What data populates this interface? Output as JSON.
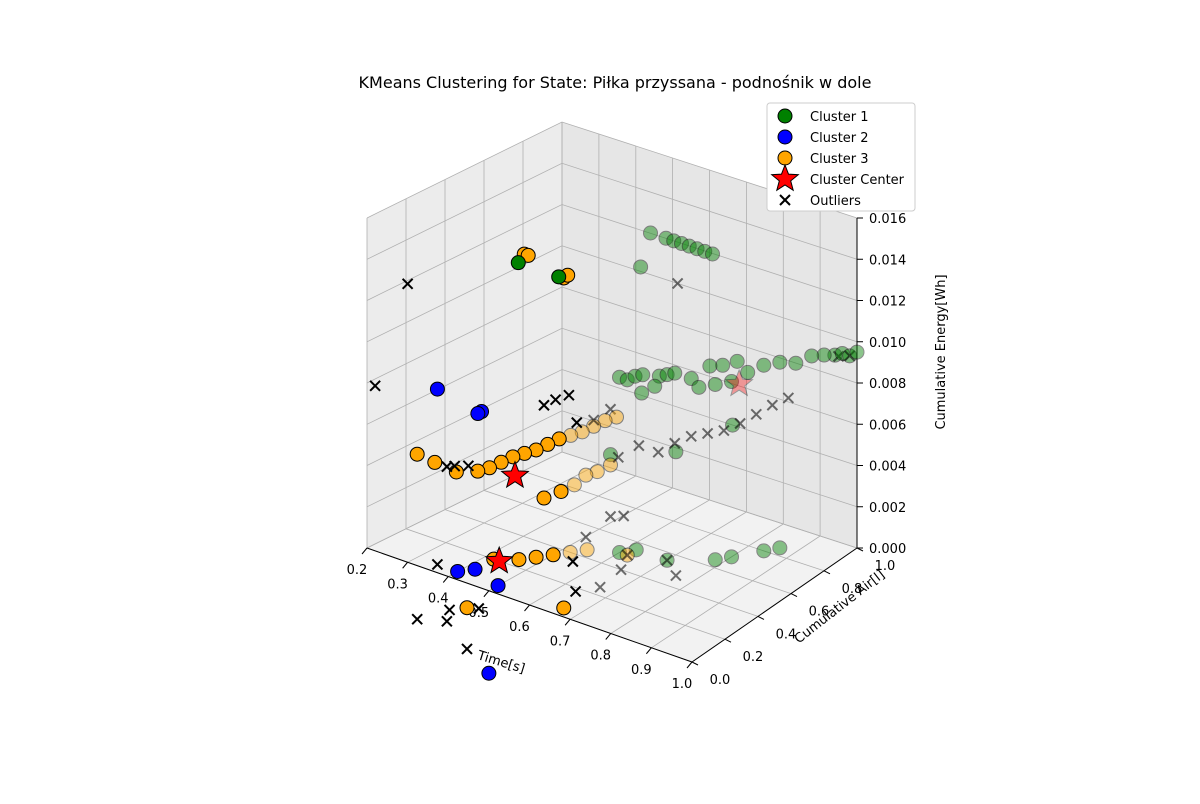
{
  "chart_data": {
    "type": "scatter3d",
    "title": "KMeans Clustering for State: Piłka przyssana - podnośnik w dole",
    "xlabel": "Time[s]",
    "ylabel": "Cumulative Air[l]",
    "zlabel": "Cumulative Energy[Wh]",
    "xlim": [
      0.2,
      1.0
    ],
    "ylim": [
      0.0,
      1.0
    ],
    "zlim": [
      0.0,
      0.016
    ],
    "xticks": [
      "0.2",
      "0.3",
      "0.4",
      "0.5",
      "0.6",
      "0.7",
      "0.8",
      "0.9",
      "1.0"
    ],
    "yticks": [
      "0.0",
      "0.2",
      "0.4",
      "0.6",
      "0.8",
      "1.0"
    ],
    "zticks": [
      "0.000",
      "0.002",
      "0.004",
      "0.006",
      "0.008",
      "0.010",
      "0.012",
      "0.014",
      "0.016"
    ],
    "grid": true,
    "legend_position": "top-right",
    "colors": {
      "Cluster 1": "#008000",
      "Cluster 2": "#0000ff",
      "Cluster 3": "#ffa500",
      "Cluster Center": "#ff0000",
      "Outliers": "#000000"
    },
    "legend": [
      "Cluster 1",
      "Cluster 2",
      "Cluster 3",
      "Cluster Center",
      "Outliers"
    ],
    "series": [
      {
        "name": "Cluster 1",
        "points": [
          [
            0.55,
            0.05,
            0.016
          ],
          [
            0.65,
            0.05,
            0.016
          ],
          [
            0.68,
            0.5,
            0.016
          ],
          [
            0.72,
            0.5,
            0.016
          ],
          [
            0.74,
            0.5,
            0.016
          ],
          [
            0.76,
            0.5,
            0.016
          ],
          [
            0.78,
            0.5,
            0.016
          ],
          [
            0.8,
            0.5,
            0.016
          ],
          [
            0.82,
            0.5,
            0.016
          ],
          [
            0.84,
            0.5,
            0.016
          ],
          [
            0.7,
            0.4,
            0.015
          ],
          [
            0.6,
            0.5,
            0.0085
          ],
          [
            0.62,
            0.5,
            0.0085
          ],
          [
            0.64,
            0.5,
            0.0088
          ],
          [
            0.66,
            0.5,
            0.009
          ],
          [
            0.68,
            0.55,
            0.0088
          ],
          [
            0.7,
            0.55,
            0.009
          ],
          [
            0.72,
            0.55,
            0.0092
          ],
          [
            0.74,
            0.6,
            0.0088
          ],
          [
            0.76,
            0.6,
            0.0085
          ],
          [
            0.78,
            0.65,
            0.0085
          ],
          [
            0.8,
            0.7,
            0.0085
          ],
          [
            0.82,
            0.75,
            0.0088
          ],
          [
            0.84,
            0.8,
            0.009
          ],
          [
            0.86,
            0.85,
            0.009
          ],
          [
            0.88,
            0.9,
            0.0088
          ],
          [
            0.9,
            0.95,
            0.009
          ],
          [
            0.92,
            0.98,
            0.009
          ],
          [
            0.94,
            1.0,
            0.009
          ],
          [
            0.96,
            1.0,
            0.0092
          ],
          [
            0.98,
            1.0,
            0.0092
          ],
          [
            1.0,
            1.0,
            0.0095
          ],
          [
            0.72,
            0.75,
            0.0085
          ],
          [
            0.74,
            0.78,
            0.0085
          ],
          [
            0.76,
            0.82,
            0.0086
          ],
          [
            0.68,
            0.45,
            0.0085
          ],
          [
            0.7,
            0.48,
            0.0088
          ],
          [
            0.6,
            0.5,
            0.0
          ],
          [
            0.62,
            0.55,
            0.0
          ],
          [
            0.7,
            0.55,
            0.0
          ],
          [
            0.78,
            0.65,
            0.0
          ],
          [
            0.8,
            0.7,
            0.0
          ],
          [
            0.84,
            0.8,
            0.0
          ],
          [
            0.86,
            0.85,
            0.0
          ],
          [
            0.6,
            0.45,
            0.005
          ],
          [
            0.7,
            0.6,
            0.005
          ],
          [
            0.78,
            0.75,
            0.006
          ]
        ]
      },
      {
        "name": "Cluster 2",
        "points": [
          [
            0.35,
            0.05,
            0.0085
          ],
          [
            0.45,
            0.05,
            0.008
          ],
          [
            0.45,
            0.07,
            0.008
          ],
          [
            0.4,
            0.05,
            0.0
          ],
          [
            0.42,
            0.1,
            0.0
          ],
          [
            0.5,
            0.05,
            0.0
          ],
          [
            0.5,
            0.0,
            -0.004
          ]
        ]
      },
      {
        "name": "Cluster 3",
        "points": [
          [
            0.45,
            0.3,
            0.0145
          ],
          [
            0.46,
            0.3,
            0.0145
          ],
          [
            0.55,
            0.3,
            0.014
          ],
          [
            0.56,
            0.3,
            0.0142
          ],
          [
            0.3,
            0.05,
            0.005
          ],
          [
            0.32,
            0.1,
            0.0045
          ],
          [
            0.35,
            0.15,
            0.004
          ],
          [
            0.38,
            0.2,
            0.004
          ],
          [
            0.4,
            0.22,
            0.0042
          ],
          [
            0.42,
            0.24,
            0.0045
          ],
          [
            0.44,
            0.26,
            0.0048
          ],
          [
            0.46,
            0.28,
            0.005
          ],
          [
            0.48,
            0.3,
            0.0052
          ],
          [
            0.5,
            0.32,
            0.0055
          ],
          [
            0.52,
            0.34,
            0.0058
          ],
          [
            0.54,
            0.36,
            0.006
          ],
          [
            0.56,
            0.38,
            0.0062
          ],
          [
            0.58,
            0.4,
            0.0065
          ],
          [
            0.6,
            0.42,
            0.0068
          ],
          [
            0.62,
            0.44,
            0.007
          ],
          [
            0.5,
            0.3,
            0.003
          ],
          [
            0.52,
            0.35,
            0.0032
          ],
          [
            0.54,
            0.38,
            0.0035
          ],
          [
            0.56,
            0.4,
            0.004
          ],
          [
            0.58,
            0.42,
            0.0042
          ],
          [
            0.6,
            0.45,
            0.0045
          ],
          [
            0.46,
            0.25,
            0.0
          ],
          [
            0.48,
            0.3,
            0.0
          ],
          [
            0.5,
            0.35,
            0.0
          ],
          [
            0.52,
            0.4,
            0.0
          ],
          [
            0.54,
            0.45,
            0.0
          ],
          [
            0.42,
            0.2,
            0.0
          ],
          [
            0.4,
            0.1,
            -0.002
          ],
          [
            0.55,
            0.3,
            -0.002
          ],
          [
            0.62,
            0.5,
            0.0
          ]
        ]
      },
      {
        "name": "Cluster Center",
        "points": [
          [
            0.82,
            0.7,
            0.0085
          ],
          [
            0.45,
            0.25,
            0.004
          ],
          [
            0.48,
            0.1,
            0.0008
          ]
        ]
      },
      {
        "name": "Outliers",
        "points": [
          [
            0.22,
            0.0,
            0.008
          ],
          [
            0.3,
            0.0,
            0.0135
          ],
          [
            0.35,
            0.05,
            0.0
          ],
          [
            0.35,
            0.1,
            0.0045
          ],
          [
            0.36,
            0.12,
            0.0045
          ],
          [
            0.38,
            0.15,
            0.0045
          ],
          [
            0.5,
            0.3,
            0.0075
          ],
          [
            0.52,
            0.32,
            0.0078
          ],
          [
            0.54,
            0.35,
            0.008
          ],
          [
            0.56,
            0.35,
            0.0068
          ],
          [
            0.58,
            0.4,
            0.0068
          ],
          [
            0.6,
            0.45,
            0.0072
          ],
          [
            0.62,
            0.45,
            0.005
          ],
          [
            0.65,
            0.5,
            0.0055
          ],
          [
            0.7,
            0.5,
            0.0055
          ],
          [
            0.72,
            0.55,
            0.0058
          ],
          [
            0.74,
            0.6,
            0.006
          ],
          [
            0.76,
            0.65,
            0.006
          ],
          [
            0.78,
            0.7,
            0.006
          ],
          [
            0.8,
            0.75,
            0.0062
          ],
          [
            0.82,
            0.8,
            0.0065
          ],
          [
            0.84,
            0.85,
            0.0068
          ],
          [
            0.86,
            0.9,
            0.007
          ],
          [
            0.95,
            1.0,
            0.009
          ],
          [
            0.98,
            1.0,
            0.0092
          ],
          [
            0.75,
            0.5,
            0.014
          ],
          [
            0.65,
            0.4,
            0.0
          ],
          [
            0.62,
            0.5,
            0.0
          ],
          [
            0.7,
            0.55,
            0.0
          ],
          [
            0.55,
            0.35,
            0.0
          ],
          [
            0.58,
            0.3,
            -0.001
          ],
          [
            0.56,
            0.4,
            0.001
          ],
          [
            0.6,
            0.45,
            0.002
          ],
          [
            0.62,
            0.48,
            0.002
          ],
          [
            0.55,
            0.5,
            -0.002
          ],
          [
            0.7,
            0.6,
            -0.001
          ],
          [
            0.3,
            0.05,
            -0.003
          ],
          [
            0.35,
            0.1,
            -0.003
          ],
          [
            0.4,
            0.1,
            -0.004
          ],
          [
            0.38,
            0.05,
            -0.002
          ],
          [
            0.42,
            0.12,
            -0.002
          ]
        ]
      }
    ]
  }
}
